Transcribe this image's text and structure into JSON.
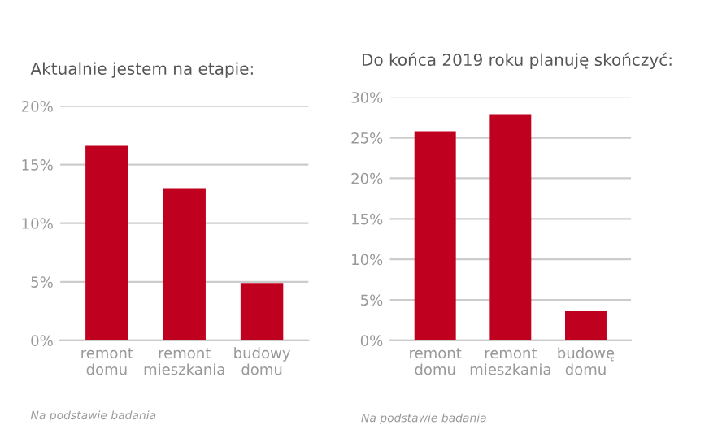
{
  "chart_data": [
    {
      "type": "bar",
      "title": "Aktualnie jestem na etapie:",
      "categories": [
        "remont\ndomu",
        "remont\nmieszkania",
        "budowy\ndomu"
      ],
      "values": [
        16.6,
        13.0,
        4.9
      ],
      "color": "#c0001f",
      "ylim": [
        0,
        20
      ],
      "yticks": [
        {
          "value": 0,
          "label": "0%"
        },
        {
          "value": 5,
          "label": "5%"
        },
        {
          "value": 10,
          "label": "10%"
        },
        {
          "value": 15,
          "label": "15%"
        },
        {
          "value": 20,
          "label": "20%"
        }
      ],
      "grid": "y",
      "annotations": [
        "Na podstawie badania"
      ]
    },
    {
      "type": "bar",
      "title": "Do końca 2019 roku planuję skończyć:",
      "categories": [
        "remont\ndomu",
        "remont\nmieszkania",
        "budowę\ndomu"
      ],
      "values": [
        25.8,
        27.9,
        3.6
      ],
      "color": "#c0001f",
      "ylim": [
        0,
        30
      ],
      "yticks": [
        {
          "value": 0,
          "label": "0%"
        },
        {
          "value": 5,
          "label": "5%"
        },
        {
          "value": 10,
          "label": "10%"
        },
        {
          "value": 15,
          "label": "15%"
        },
        {
          "value": 20,
          "label": "20%"
        },
        {
          "value": 25,
          "label": "25%"
        },
        {
          "value": 30,
          "label": "30%"
        }
      ],
      "grid": "y",
      "annotations": [
        "Na podstawie badania"
      ]
    }
  ]
}
